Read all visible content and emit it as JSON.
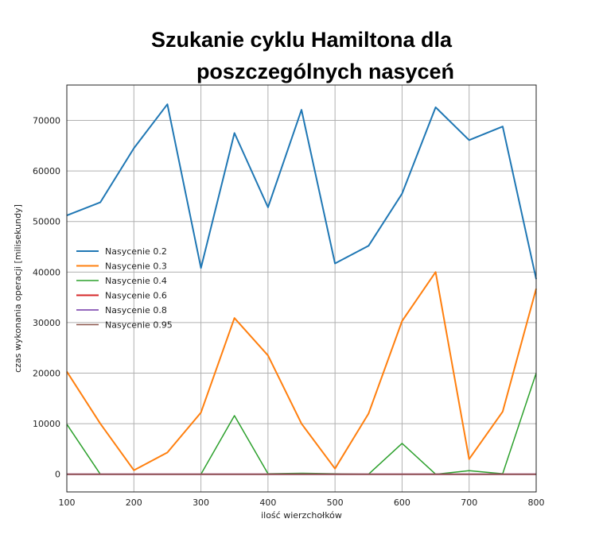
{
  "chart_data": {
    "type": "line",
    "title_line1": "Szukanie cyklu Hamiltona dla",
    "title_line2": "poszczególnych nasyceń",
    "xlabel": "ilość wierzchołków",
    "ylabel": "czas wykonania operacji [milisekundy]",
    "xlim": [
      100,
      800
    ],
    "ylim": [
      -3500,
      77000
    ],
    "xticks": [
      100,
      200,
      300,
      400,
      500,
      600,
      700,
      800
    ],
    "yticks": [
      0,
      10000,
      20000,
      30000,
      40000,
      50000,
      60000,
      70000
    ],
    "grid": true,
    "legend_position": "center-left",
    "x": [
      100,
      150,
      200,
      250,
      300,
      350,
      400,
      450,
      500,
      550,
      600,
      650,
      700,
      750,
      800
    ],
    "series": [
      {
        "name": "Nasycenie 0.2",
        "color": "#1f77b4",
        "width": 2,
        "values": [
          51200,
          53800,
          64500,
          73200,
          40800,
          67500,
          52800,
          72100,
          41700,
          45200,
          55500,
          72600,
          66100,
          68800,
          38600
        ]
      },
      {
        "name": "Nasycenie 0.3",
        "color": "#ff7f0e",
        "width": 2,
        "values": [
          20300,
          10000,
          800,
          4300,
          12200,
          30900,
          23500,
          10000,
          1100,
          12000,
          30300,
          40000,
          3000,
          12400,
          36700
        ]
      },
      {
        "name": "Nasycenie 0.4",
        "color": "#2ca02c",
        "width": 1.5,
        "values": [
          9900,
          0,
          0,
          0,
          0,
          11600,
          100,
          200,
          100,
          0,
          6100,
          0,
          700,
          100,
          20000
        ]
      },
      {
        "name": "Nasycenie 0.6",
        "color": "#d62728",
        "width": 2,
        "values": [
          0,
          0,
          0,
          0,
          0,
          0,
          0,
          0,
          0,
          0,
          0,
          0,
          0,
          0,
          0
        ]
      },
      {
        "name": "Nasycenie 0.8",
        "color": "#9467bd",
        "width": 2,
        "values": [
          0,
          0,
          0,
          0,
          0,
          0,
          0,
          0,
          0,
          0,
          0,
          0,
          0,
          0,
          0
        ]
      },
      {
        "name": "Nasycenie 0.95",
        "color": "#8c564b",
        "width": 1.5,
        "values": [
          0,
          0,
          0,
          0,
          0,
          0,
          0,
          0,
          0,
          0,
          0,
          0,
          0,
          0,
          0
        ]
      }
    ]
  }
}
